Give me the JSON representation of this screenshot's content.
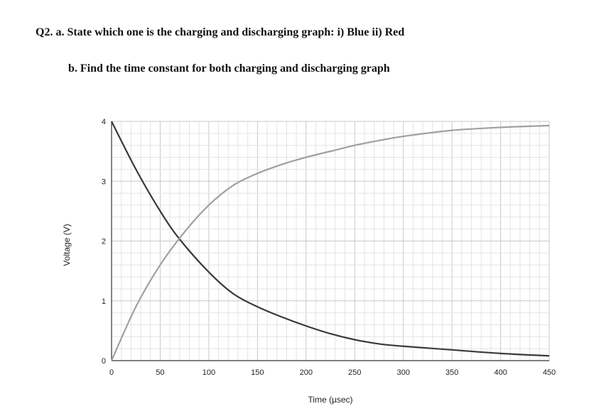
{
  "question": {
    "part_a": "Q2. a. State which one is the charging and discharging graph: i) Blue ii) Red",
    "part_b": "b. Find the time constant for both charging and discharging graph"
  },
  "chart_data": {
    "type": "line",
    "title": "",
    "xlabel": "Time (µsec)",
    "ylabel": "Voltage (V)",
    "xlim": [
      0,
      450
    ],
    "ylim": [
      0,
      4
    ],
    "xticks": [
      "0",
      "50",
      "100",
      "150",
      "200",
      "250",
      "300",
      "350",
      "400",
      "450"
    ],
    "yticks": [
      "0",
      "1",
      "2",
      "3",
      "4"
    ],
    "grid": true,
    "minor_grid": true,
    "legend": "none",
    "series": [
      {
        "color": "#3a3a3a",
        "x": [
          0,
          25,
          50,
          70,
          100,
          125,
          150,
          175,
          200,
          225,
          250,
          275,
          300,
          350,
          400,
          450
        ],
        "y": [
          4.0,
          3.2,
          2.5,
          2.03,
          1.48,
          1.12,
          0.9,
          0.73,
          0.58,
          0.45,
          0.35,
          0.28,
          0.24,
          0.18,
          0.12,
          0.08
        ]
      },
      {
        "color": "#a0a0a0",
        "x": [
          0,
          25,
          50,
          75,
          100,
          125,
          150,
          175,
          200,
          225,
          250,
          275,
          300,
          350,
          400,
          450
        ],
        "y": [
          0.0,
          0.9,
          1.6,
          2.15,
          2.6,
          2.93,
          3.13,
          3.28,
          3.4,
          3.5,
          3.6,
          3.68,
          3.75,
          3.85,
          3.9,
          3.93
        ]
      }
    ]
  }
}
